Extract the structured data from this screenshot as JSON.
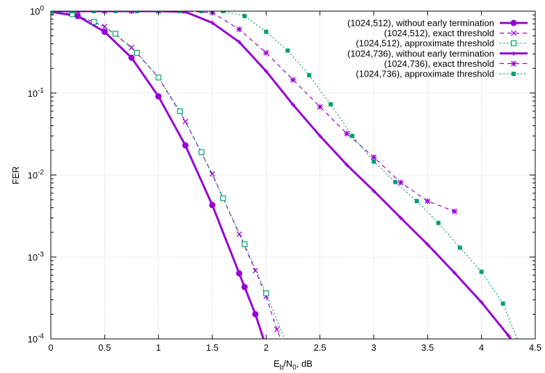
{
  "chart_data": {
    "type": "line",
    "title": "",
    "xlabel": {
      "main": "E",
      "sub": "b",
      "mid": "/N",
      "sub2": "0",
      "tail": ", dB"
    },
    "ylabel": "FER",
    "xlim": [
      0,
      4.5
    ],
    "ylim": [
      0.0001,
      1
    ],
    "yscale": "log",
    "grid": true,
    "legend_position": "top-right",
    "x_ticks": [
      {
        "value": 0,
        "label": "0"
      },
      {
        "value": 0.5,
        "label": "0.5"
      },
      {
        "value": 1,
        "label": "1"
      },
      {
        "value": 1.5,
        "label": "1.5"
      },
      {
        "value": 2,
        "label": "2"
      },
      {
        "value": 2.5,
        "label": "2.5"
      },
      {
        "value": 3,
        "label": "3"
      },
      {
        "value": 3.5,
        "label": "3.5"
      },
      {
        "value": 4,
        "label": "4"
      },
      {
        "value": 4.5,
        "label": "4.5"
      }
    ],
    "y_ticks": [
      {
        "value": 1,
        "base": "10",
        "exp": "0"
      },
      {
        "value": 0.1,
        "base": "10",
        "exp": "-1"
      },
      {
        "value": 0.01,
        "base": "10",
        "exp": "-2"
      },
      {
        "value": 0.001,
        "base": "10",
        "exp": "-3"
      },
      {
        "value": 0.0001,
        "base": "10",
        "exp": "-4"
      }
    ],
    "series": [
      {
        "name": "(1024,512), without early termination",
        "color": "#9400d3",
        "dash": "solid",
        "width": 3,
        "marker": "filled-circle",
        "x": [
          0,
          0.25,
          0.5,
          0.75,
          1,
          1.25,
          1.5,
          1.75,
          1.8,
          1.9,
          2
        ],
        "y": [
          0.98,
          0.87,
          0.56,
          0.27,
          0.091,
          0.023,
          0.0043,
          0.00063,
          0.00043,
          0.0002,
          8e-05
        ]
      },
      {
        "name": "(1024,512), exact threshold",
        "color": "#9400d3",
        "dash": "dashed",
        "width": 1.2,
        "marker": "x",
        "x": [
          0,
          0.2,
          0.5,
          0.75,
          1,
          1.25,
          1.5,
          1.75,
          1.9,
          2,
          2.1,
          2.2
        ],
        "y": [
          0.98,
          0.93,
          0.65,
          0.36,
          0.155,
          0.045,
          0.0103,
          0.0019,
          0.00068,
          0.00033,
          0.00013,
          6e-05
        ]
      },
      {
        "name": "(1024,512), approximate threshold",
        "color": "#009e73",
        "dash": "dotted",
        "width": 1.2,
        "marker": "open-square",
        "x": [
          0,
          0.2,
          0.4,
          0.6,
          0.8,
          1,
          1.2,
          1.4,
          1.6,
          1.8,
          2,
          2.2
        ],
        "y": [
          0.98,
          0.92,
          0.74,
          0.53,
          0.31,
          0.155,
          0.06,
          0.019,
          0.0052,
          0.00143,
          0.00036,
          8e-05
        ]
      },
      {
        "name": "(1024,736), without early termination",
        "color": "#9400d3",
        "dash": "solid",
        "width": 3,
        "marker": "small-plus",
        "x": [
          0,
          0.25,
          0.5,
          0.75,
          1,
          1.25,
          1.5,
          1.75,
          2,
          2.25,
          2.5,
          2.75,
          3,
          3.25,
          3.5,
          3.75,
          4,
          4.25,
          4.4
        ],
        "y": [
          1,
          1,
          1,
          1,
          1,
          0.98,
          0.72,
          0.42,
          0.185,
          0.072,
          0.03,
          0.0133,
          0.0064,
          0.003,
          0.00142,
          0.00064,
          0.00028,
          0.00011,
          6e-05
        ]
      },
      {
        "name": "(1024,736), exact threshold",
        "color": "#9400d3",
        "dash": "dashed",
        "width": 1.2,
        "marker": "asterisk",
        "x": [
          0,
          0.25,
          0.5,
          0.75,
          1,
          1.25,
          1.5,
          1.75,
          2,
          2.25,
          2.5,
          2.75,
          3,
          3.25,
          3.5,
          3.75
        ],
        "y": [
          1,
          1,
          1,
          1,
          1,
          1,
          0.96,
          0.6,
          0.31,
          0.145,
          0.068,
          0.032,
          0.0165,
          0.0081,
          0.0048,
          0.0036
        ]
      },
      {
        "name": "(1024,736), approximate threshold",
        "color": "#009e73",
        "dash": "dotted",
        "width": 1.2,
        "marker": "filled-square",
        "x": [
          0,
          0.2,
          0.4,
          0.6,
          0.8,
          1,
          1.2,
          1.4,
          1.6,
          1.8,
          2,
          2.2,
          2.4,
          2.6,
          2.8,
          3,
          3.2,
          3.4,
          3.6,
          3.8,
          4,
          4.2,
          4.4
        ],
        "y": [
          1,
          1,
          1,
          1,
          1,
          1,
          1,
          1,
          1,
          0.87,
          0.56,
          0.33,
          0.165,
          0.073,
          0.03,
          0.0146,
          0.0082,
          0.0048,
          0.0026,
          0.0013,
          0.00066,
          0.00027,
          6e-05
        ]
      }
    ]
  }
}
